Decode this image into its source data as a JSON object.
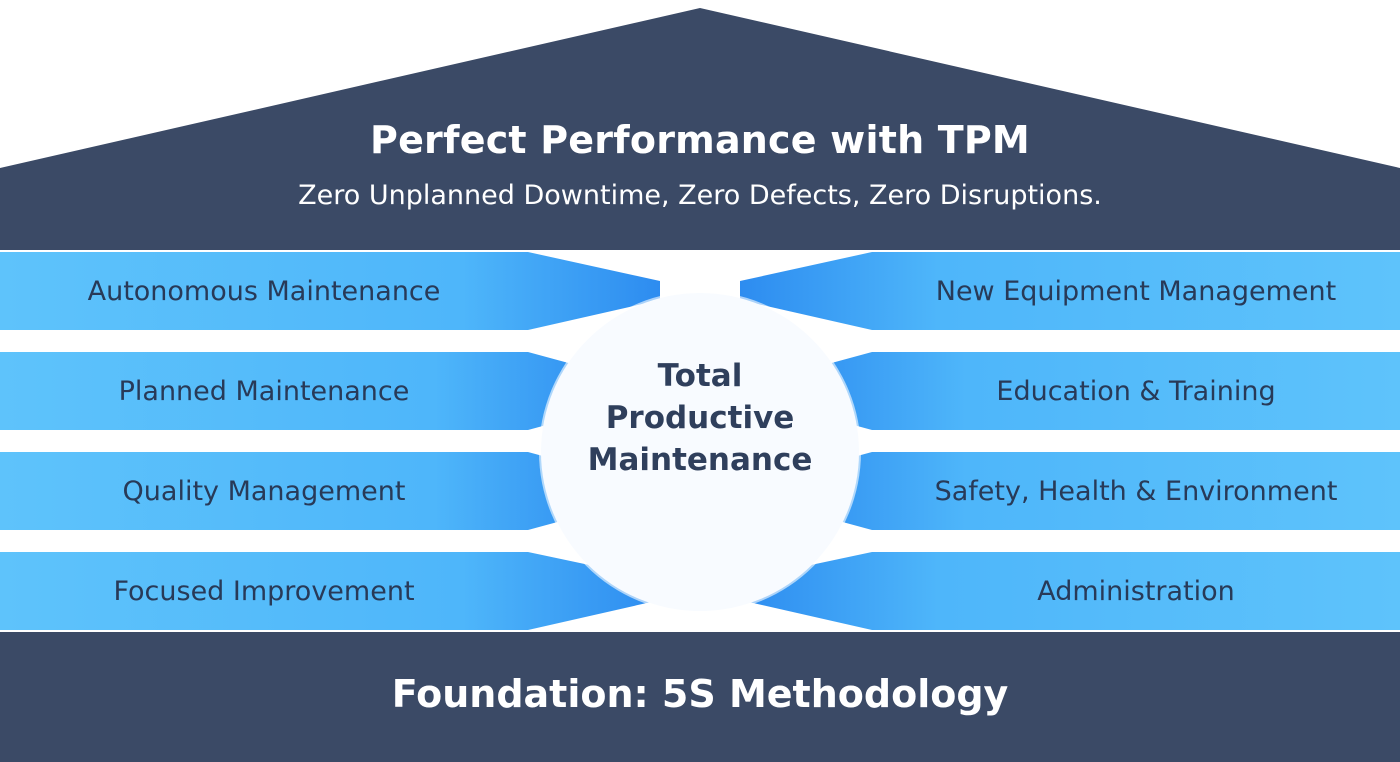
{
  "roof": {
    "title": "Perfect Performance with TPM",
    "subtitle": "Zero Unplanned Downtime, Zero Defects, Zero Disruptions."
  },
  "hub": {
    "line1": "Total",
    "line2": "Productive",
    "line3": "Maintenance"
  },
  "pillars_left": [
    "Autonomous Maintenance",
    "Planned Maintenance",
    "Quality Management",
    "Focused Improvement"
  ],
  "pillars_right": [
    "New Equipment Management",
    "Education & Training",
    "Safety, Health & Environment",
    "Administration"
  ],
  "foundation": "Foundation: 5S Methodology",
  "colors": {
    "navy": "#3b4a66",
    "pillar_light": "#5ec3fb",
    "pillar_mid": "#3aa0f4",
    "hub_fill": "#f8fbff",
    "pillar_text": "#283a58"
  }
}
